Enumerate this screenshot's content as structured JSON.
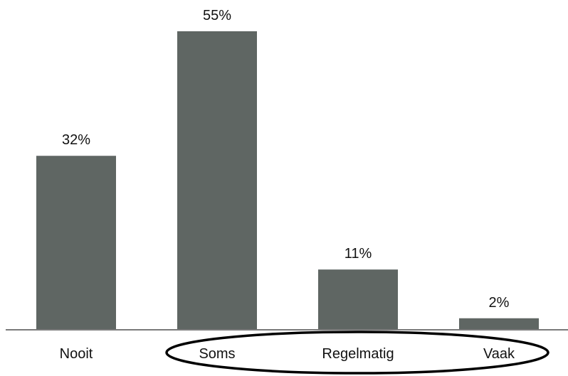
{
  "chart_data": {
    "type": "bar",
    "categories": [
      "Nooit",
      "Soms",
      "Regelmatig",
      "Vaak"
    ],
    "values": [
      32,
      55,
      11,
      2
    ],
    "value_labels": [
      "32%",
      "55%",
      "11%",
      "2%"
    ],
    "unit": "%",
    "ylim": [
      0,
      55
    ],
    "grid": false,
    "legend": "none",
    "bar_color": "#5f6663",
    "annotation": {
      "type": "ellipse",
      "encircles": [
        "Soms",
        "Regelmatig",
        "Vaak"
      ],
      "color": "#000000"
    }
  }
}
